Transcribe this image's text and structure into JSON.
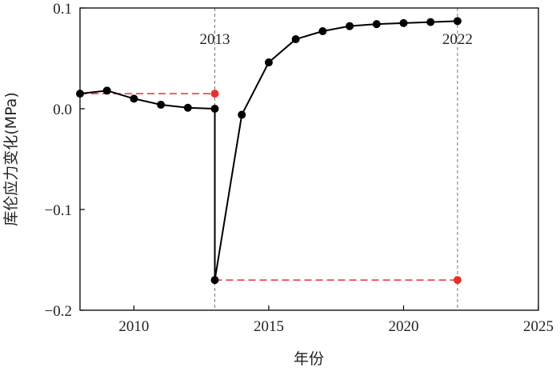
{
  "chart_data": {
    "type": "line",
    "xlabel": "年份",
    "ylabel": "库伦应力变化(MPa)",
    "xlim": [
      2008,
      2025
    ],
    "ylim": [
      -0.2,
      0.1
    ],
    "xticks": [
      2010,
      2015,
      2020,
      2025
    ],
    "xtick_labels": [
      "2010",
      "2015",
      "2020",
      "2025"
    ],
    "yticks": [
      0.1,
      0.0,
      -0.1,
      -0.2
    ],
    "ytick_labels": [
      "0.1",
      "0.0",
      "−0.1",
      "−0.2"
    ],
    "grid": false,
    "series": [
      {
        "color": "#000000",
        "marker": "circle",
        "x": [
          2008,
          2009,
          2010,
          2011,
          2012,
          2013,
          2013,
          2014,
          2015,
          2016,
          2017,
          2018,
          2019,
          2020,
          2021,
          2022
        ],
        "y": [
          0.015,
          0.018,
          0.01,
          0.004,
          0.001,
          0.0,
          -0.17,
          -0.006,
          0.046,
          0.069,
          0.077,
          0.082,
          0.084,
          0.085,
          0.086,
          0.087
        ]
      }
    ],
    "reference_lines": [
      {
        "style": "dashed",
        "color": "#e8302a",
        "x": [
          2008,
          2013
        ],
        "y": [
          0.015,
          0.015
        ],
        "end_marker": "circle"
      },
      {
        "style": "dashed",
        "color": "#e8302a",
        "x": [
          2013,
          2022
        ],
        "y": [
          -0.17,
          -0.17
        ],
        "end_marker": "circle"
      }
    ],
    "vertical_markers": [
      {
        "x": 2013,
        "label": "2013",
        "color": "#777777"
      },
      {
        "x": 2022,
        "label": "2022",
        "color": "#777777"
      }
    ]
  }
}
